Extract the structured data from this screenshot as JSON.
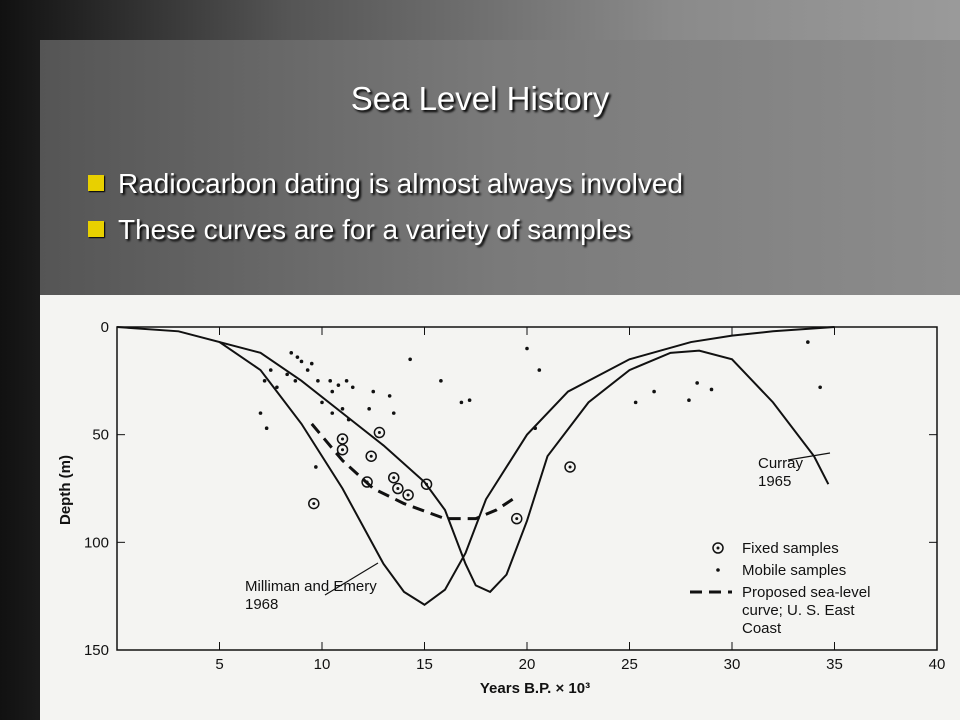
{
  "slide": {
    "title": "Sea Level History",
    "bullets": [
      "Radiocarbon dating is almost always involved",
      "These curves are for a variety of samples"
    ]
  },
  "chart_data": {
    "type": "line",
    "xlabel": "Years B.P. × 10³",
    "ylabel": "Depth (m)",
    "xlim": [
      0,
      40
    ],
    "ylim": [
      0,
      150
    ],
    "y_inverted": true,
    "xticks": [
      5,
      10,
      15,
      20,
      25,
      30,
      35,
      40
    ],
    "yticks": [
      0,
      50,
      100,
      150
    ],
    "series": [
      {
        "name": "Milliman and Emery 1968",
        "style": "solid",
        "label_style": "annotation",
        "color": "#111",
        "x": [
          0,
          3,
          5,
          7,
          9,
          11,
          13,
          14,
          15,
          16,
          17,
          18,
          20,
          22,
          25,
          28,
          30,
          32,
          35
        ],
        "values": [
          0,
          2,
          7,
          20,
          45,
          75,
          110,
          123,
          129,
          122,
          105,
          80,
          50,
          30,
          15,
          7,
          4,
          2,
          0
        ]
      },
      {
        "name": "Curray 1965",
        "style": "solid",
        "label_style": "annotation",
        "color": "#111",
        "x": [
          5,
          7,
          9,
          11,
          13,
          15,
          16,
          17,
          17.5,
          18.2,
          19,
          20,
          21,
          23,
          25,
          27,
          28.4,
          30,
          32,
          34,
          34.7
        ],
        "values": [
          7,
          12,
          25,
          40,
          55,
          72,
          85,
          110,
          120,
          123,
          115,
          90,
          60,
          35,
          20,
          12,
          11,
          15,
          35,
          60,
          73
        ]
      },
      {
        "name": "Proposed sea-level curve; U. S. East Coast",
        "style": "dashed",
        "label_style": "legend",
        "color": "#111",
        "x": [
          9.5,
          11,
          12.5,
          14,
          16,
          17.5,
          18.5,
          19.3
        ],
        "values": [
          45,
          62,
          75,
          82,
          89,
          89,
          85,
          80
        ]
      },
      {
        "name": "Fixed samples",
        "style": "circled",
        "label_style": "legend",
        "color": "#111",
        "x": [
          11,
          11,
          12.4,
          12.8,
          12.2,
          13.5,
          13.7,
          14.2,
          15.1,
          9.6,
          19.5,
          22.1
        ],
        "values": [
          52,
          57,
          60,
          49,
          72,
          70,
          75,
          78,
          73,
          82,
          89,
          65
        ]
      },
      {
        "name": "Mobile samples",
        "style": "dot",
        "label_style": "legend",
        "color": "#111",
        "x": [
          8.5,
          8.8,
          9,
          9.3,
          9.5,
          8.3,
          7.5,
          7.2,
          7.8,
          8.7,
          9.8,
          10.4,
          10.8,
          11.2,
          11.5,
          10,
          10.5,
          11,
          11.3,
          12.5,
          12.3,
          13.3,
          13.5,
          7,
          7.3,
          9.7,
          10.5,
          14.3,
          15.8,
          16.8,
          17.2,
          20,
          20.6,
          20.4,
          26.2,
          25.3,
          27.9,
          28.3,
          29,
          33.7,
          34.3
        ],
        "values": [
          12,
          14,
          16,
          20,
          17,
          22,
          20,
          25,
          28,
          25,
          25,
          25,
          27,
          25,
          28,
          35,
          30,
          38,
          43,
          30,
          38,
          32,
          40,
          40,
          47,
          65,
          40,
          15,
          25,
          35,
          34,
          10,
          20,
          47,
          30,
          35,
          34,
          26,
          29,
          7,
          28
        ]
      }
    ]
  }
}
